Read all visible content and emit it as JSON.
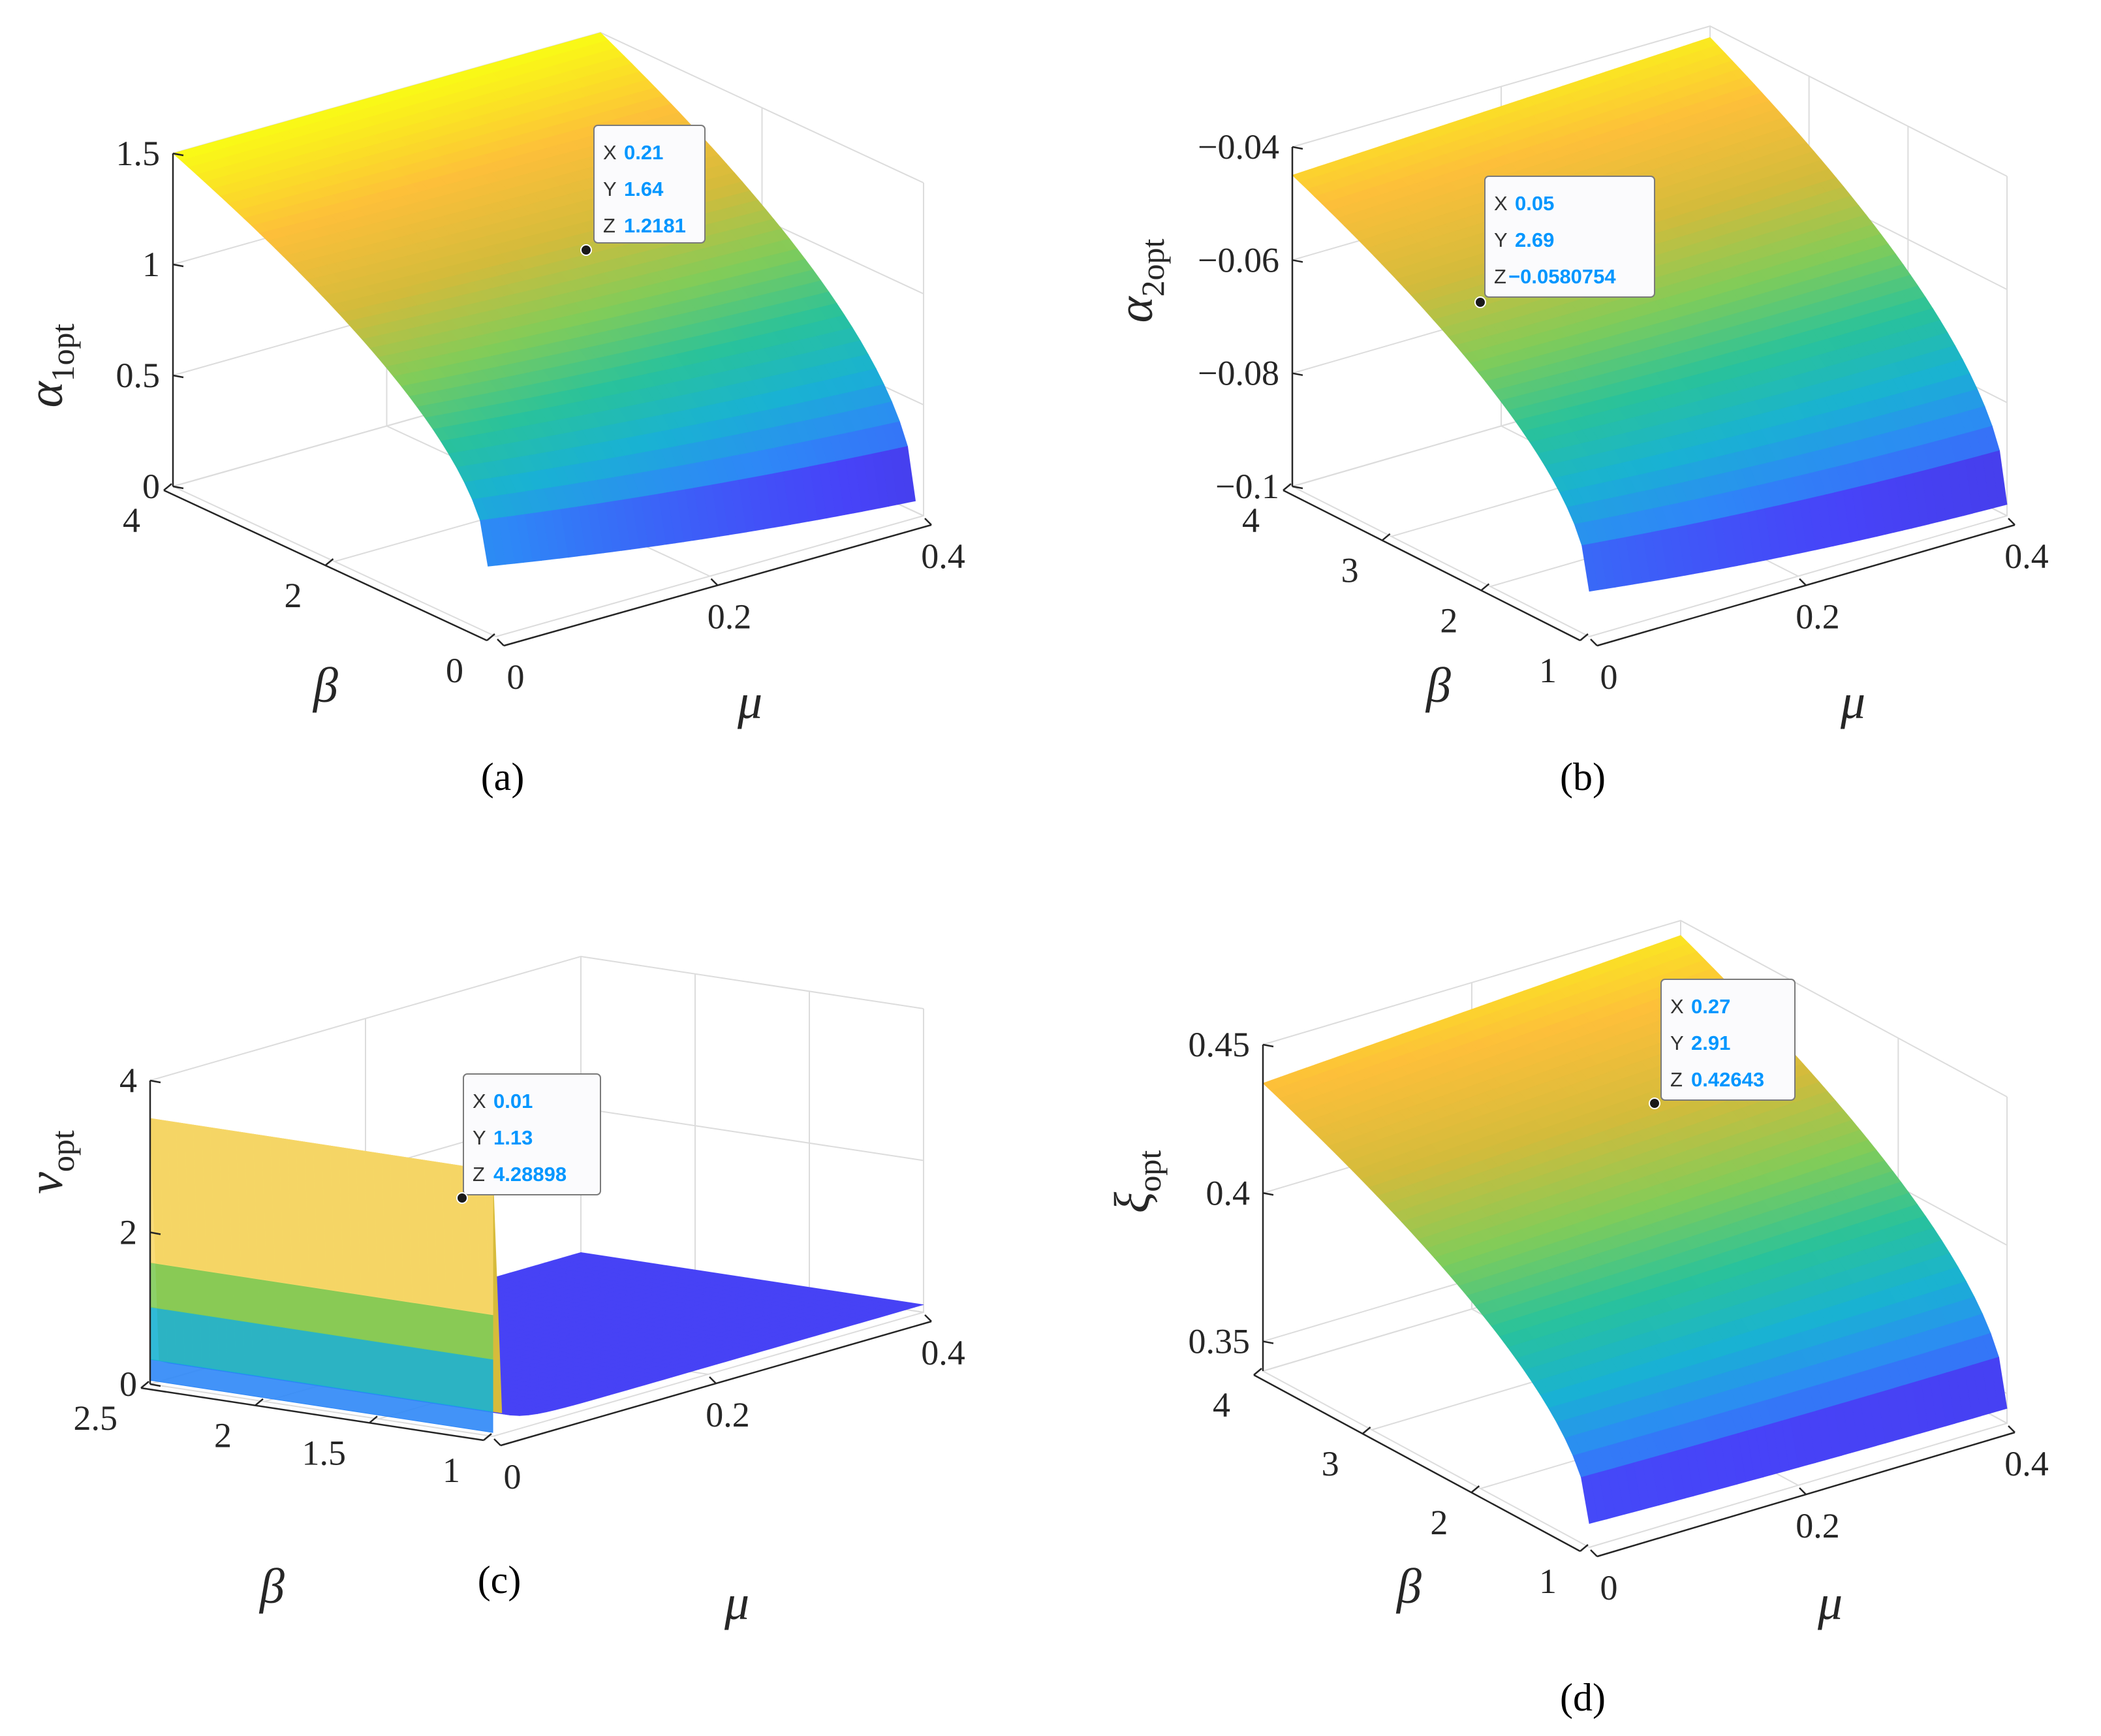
{
  "colormap": [
    "#3e26a8",
    "#4743f8",
    "#2e87f7",
    "#19b2d3",
    "#29c29b",
    "#81cc59",
    "#d3bb3b",
    "#fdbf3a",
    "#f9fb15"
  ],
  "axis_color": "#262626",
  "grid_color": "#dcdcdc",
  "chart_data": [
    {
      "id": "a",
      "type": "surface",
      "caption": "(a)",
      "xlabel": "μ",
      "ylabel": "β",
      "zlabel": "α",
      "zlabel_sub": "1opt",
      "xticks": [
        {
          "v": 0,
          "label": "0"
        },
        {
          "v": 0.2,
          "label": "0.2"
        },
        {
          "v": 0.4,
          "label": "0.4"
        }
      ],
      "yticks": [
        {
          "v": 0,
          "label": "0"
        },
        {
          "v": 2,
          "label": "2"
        },
        {
          "v": 4,
          "label": "4"
        }
      ],
      "zticks": [
        {
          "v": 0,
          "label": "0"
        },
        {
          "v": 0.5,
          "label": "0.5"
        },
        {
          "v": 1,
          "label": "1"
        },
        {
          "v": 1.5,
          "label": "1.5"
        }
      ],
      "xlim": [
        0,
        0.4
      ],
      "ylim": [
        0,
        4
      ],
      "zlim": [
        0,
        1.5
      ],
      "surface_range": {
        "x": [
          0,
          0.4
        ],
        "y": [
          0.1,
          4
        ]
      },
      "corner_values": {
        "x0_ylow": 0.3,
        "x0_yhigh": 1.5,
        "x1_ylow": 0.05,
        "x1_yhigh": 1.5,
        "xmid_ylow": 0.15
      },
      "datatip": {
        "x": "0.21",
        "y": "1.64",
        "z": "1.2181"
      }
    },
    {
      "id": "b",
      "type": "surface",
      "caption": "(b)",
      "xlabel": "μ",
      "ylabel": "β",
      "zlabel": "α",
      "zlabel_sub": "2opt",
      "xticks": [
        {
          "v": 0,
          "label": "0"
        },
        {
          "v": 0.2,
          "label": "0.2"
        },
        {
          "v": 0.4,
          "label": "0.4"
        }
      ],
      "yticks": [
        {
          "v": 1,
          "label": "1"
        },
        {
          "v": 2,
          "label": "2"
        },
        {
          "v": 3,
          "label": "3"
        },
        {
          "v": 4,
          "label": "4"
        }
      ],
      "zticks": [
        {
          "v": -0.1,
          "label": "−0.1"
        },
        {
          "v": -0.08,
          "label": "−0.08"
        },
        {
          "v": -0.06,
          "label": "−0.06"
        },
        {
          "v": -0.04,
          "label": "−0.04"
        }
      ],
      "xlim": [
        0,
        0.4
      ],
      "ylim": [
        1,
        4
      ],
      "zlim": [
        -0.1,
        -0.04
      ],
      "surface_range": {
        "x": [
          0,
          0.4
        ],
        "y": [
          1,
          4
        ]
      },
      "corner_values": {
        "x0_ylow": -0.092,
        "x0_yhigh": -0.045,
        "x1_ylow": -0.098,
        "x1_yhigh": -0.042,
        "xmid_ylow": -0.096
      },
      "datatip": {
        "x": "0.05",
        "y": "2.69",
        "z": "−0.0580754"
      }
    },
    {
      "id": "c",
      "type": "surface",
      "caption": "(c)",
      "xlabel": "μ",
      "ylabel": "β",
      "zlabel": "ν",
      "zlabel_sub": "opt",
      "xticks": [
        {
          "v": 0,
          "label": "0"
        },
        {
          "v": 0.2,
          "label": "0.2"
        },
        {
          "v": 0.4,
          "label": "0.4"
        }
      ],
      "yticks": [
        {
          "v": 1,
          "label": "1"
        },
        {
          "v": 1.5,
          "label": "1.5"
        },
        {
          "v": 2,
          "label": "2"
        },
        {
          "v": 2.5,
          "label": "2.5"
        }
      ],
      "zticks": [
        {
          "v": 0,
          "label": "0"
        },
        {
          "v": 2,
          "label": "2"
        },
        {
          "v": 4,
          "label": "4"
        }
      ],
      "xlim": [
        0,
        0.4
      ],
      "ylim": [
        1,
        2.5
      ],
      "zlim": [
        0,
        4
      ],
      "surface_range": {
        "x": [
          0,
          0.4
        ],
        "y": [
          1,
          2.5
        ]
      },
      "corner_values": {
        "x0_ylow": 3.5,
        "x0_yhigh": 3.5,
        "x1_ylow": 0.05,
        "x1_yhigh": 0.05,
        "xmid_ylow": 0.1
      },
      "datatip": {
        "x": "0.01",
        "y": "1.13",
        "z": "4.28898"
      }
    },
    {
      "id": "d",
      "type": "surface",
      "caption": "(d)",
      "xlabel": "μ",
      "ylabel": "β",
      "zlabel": "ξ",
      "zlabel_sub": "opt",
      "xticks": [
        {
          "v": 0,
          "label": "0"
        },
        {
          "v": 0.2,
          "label": "0.2"
        },
        {
          "v": 0.4,
          "label": "0.4"
        }
      ],
      "yticks": [
        {
          "v": 1,
          "label": "1"
        },
        {
          "v": 2,
          "label": "2"
        },
        {
          "v": 3,
          "label": "3"
        },
        {
          "v": 4,
          "label": "4"
        }
      ],
      "zticks": [
        {
          "v": 0.35,
          "label": "0.35"
        },
        {
          "v": 0.4,
          "label": "0.4"
        },
        {
          "v": 0.45,
          "label": "0.45"
        }
      ],
      "xlim": [
        0,
        0.4
      ],
      "ylim": [
        1,
        4
      ],
      "zlim": [
        0.34,
        0.45
      ],
      "surface_range": {
        "x": [
          0,
          0.4
        ],
        "y": [
          1,
          4
        ]
      },
      "corner_values": {
        "x0_ylow": 0.348,
        "x0_yhigh": 0.437,
        "x1_ylow": 0.345,
        "x1_yhigh": 0.445,
        "xmid_ylow": 0.346
      },
      "datatip": {
        "x": "0.27",
        "y": "2.91",
        "z": "0.42643"
      }
    }
  ]
}
